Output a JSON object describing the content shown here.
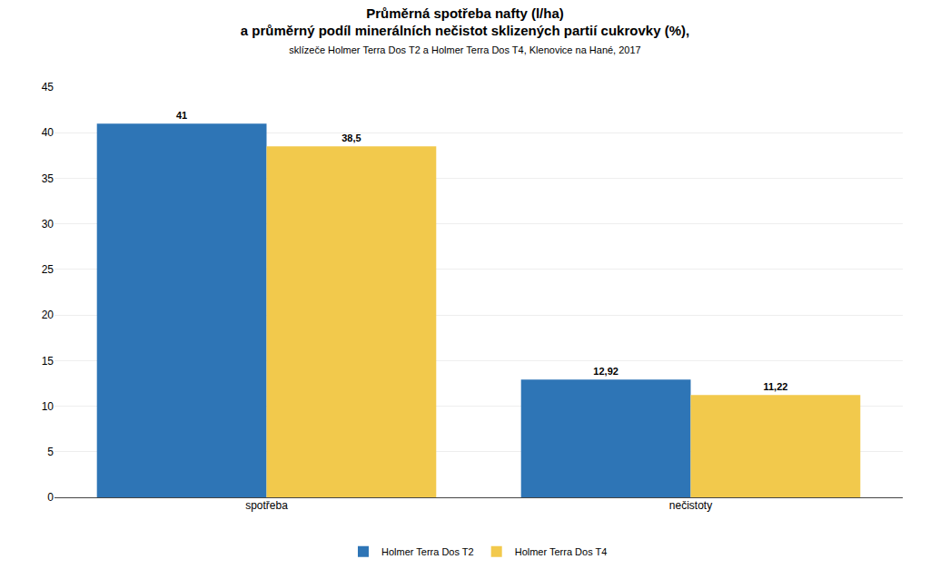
{
  "chart_data": {
    "type": "bar",
    "title": "Průměrná spotřeba nafty (l/ha)\na průměrný podíl minerálních nečistot sklizených partií cukrovky (%),",
    "subtitle": "sklízeče Holmer Terra Dos T2 a Holmer Terra Dos T4, Klenovice na Hané, 2017",
    "categories": [
      "spotřeba",
      "nečistoty"
    ],
    "series": [
      {
        "name": "Holmer Terra Dos T2",
        "color": "#2E75B6",
        "values": [
          41,
          12.92
        ],
        "value_labels": [
          "41",
          "12,92"
        ]
      },
      {
        "name": "Holmer Terra Dos T4",
        "color": "#F2C94C",
        "values": [
          38.5,
          11.22
        ],
        "value_labels": [
          "38,5",
          "11,22"
        ]
      }
    ],
    "ylim": [
      0,
      45
    ],
    "yticks": [
      0,
      5,
      10,
      15,
      20,
      25,
      30,
      35,
      40,
      45
    ],
    "grid": true,
    "legend": "bottom",
    "data_labels": true
  }
}
